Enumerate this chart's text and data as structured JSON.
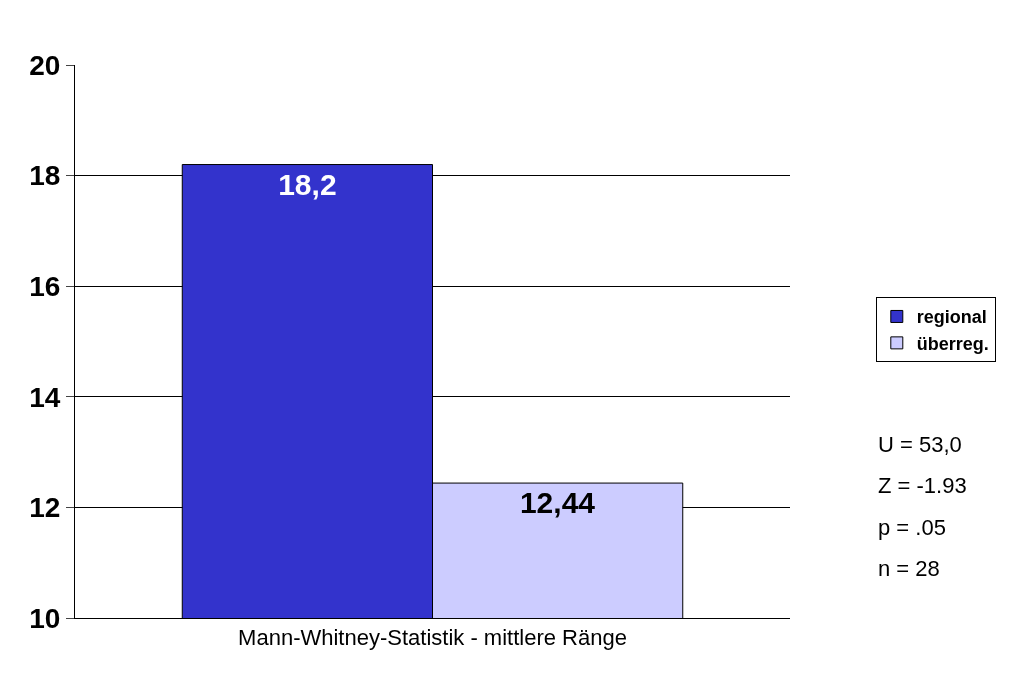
{
  "chart_data": {
    "type": "bar",
    "categories": [
      "Mann-Whitney-Statistik - mittlere Ränge"
    ],
    "series": [
      {
        "name": "regional",
        "color": "#3333cc",
        "values": [
          18.2
        ],
        "value_labels": [
          "18,2"
        ]
      },
      {
        "name": "überreg.",
        "color": "#ccccff",
        "values": [
          12.44
        ],
        "value_labels": [
          "12,44"
        ]
      }
    ],
    "ylim": [
      10,
      20
    ],
    "yticks": [
      10,
      12,
      14,
      16,
      18,
      20
    ],
    "grid": "y",
    "legend": "right",
    "annotations": [
      "U = 53,0",
      "Z = -1.93",
      "p = .05",
      "n = 28"
    ]
  }
}
